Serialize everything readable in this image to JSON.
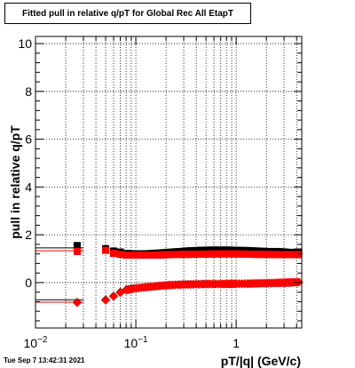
{
  "chart_data": {
    "type": "scatter",
    "title": "Fitted pull in relative q/pT for Global Rec All EtapT",
    "xlabel": "pT/|q| (GeV/c)",
    "ylabel": "pull in relative q/pT",
    "xscale": "log",
    "xlim": [
      0.01,
      4.5
    ],
    "ylim": [
      -1.9,
      10.3
    ],
    "x_ticks": [
      {
        "value": 0.01,
        "base": "10",
        "exp": "−2"
      },
      {
        "value": 0.1,
        "base": "10",
        "exp": "−1"
      },
      {
        "value": 1,
        "base": "1",
        "exp": ""
      }
    ],
    "y_ticks": [
      0,
      2,
      4,
      6,
      8,
      10
    ],
    "grid": true,
    "series": [
      {
        "marker": "square",
        "color": "#000000",
        "points": [
          [
            0.026,
            1.55
          ],
          [
            0.05,
            1.42
          ],
          [
            0.06,
            1.32
          ],
          [
            0.07,
            1.28
          ],
          [
            0.08,
            1.22
          ],
          [
            0.095,
            1.2
          ],
          [
            0.12,
            1.2
          ],
          [
            0.15,
            1.22
          ],
          [
            0.18,
            1.24
          ],
          [
            0.22,
            1.27
          ],
          [
            0.28,
            1.3
          ],
          [
            0.35,
            1.33
          ],
          [
            0.45,
            1.35
          ],
          [
            0.55,
            1.36
          ],
          [
            0.7,
            1.36
          ],
          [
            0.85,
            1.36
          ],
          [
            1.0,
            1.35
          ],
          [
            1.3,
            1.34
          ],
          [
            1.6,
            1.32
          ],
          [
            2.0,
            1.3
          ],
          [
            2.5,
            1.3
          ],
          [
            3.0,
            1.28
          ],
          [
            3.5,
            1.25
          ],
          [
            4.2,
            1.28
          ]
        ],
        "fit_line": 1.45,
        "fit_xmax": 0.03
      },
      {
        "marker": "square",
        "color": "#ff0000",
        "points": [
          [
            0.026,
            1.3
          ],
          [
            0.05,
            1.35
          ],
          [
            0.06,
            1.22
          ],
          [
            0.07,
            1.18
          ],
          [
            0.08,
            1.15
          ],
          [
            0.095,
            1.15
          ],
          [
            0.12,
            1.15
          ],
          [
            0.15,
            1.15
          ],
          [
            0.18,
            1.16
          ],
          [
            0.22,
            1.17
          ],
          [
            0.28,
            1.18
          ],
          [
            0.35,
            1.18
          ],
          [
            0.45,
            1.19
          ],
          [
            0.55,
            1.19
          ],
          [
            0.7,
            1.2
          ],
          [
            0.85,
            1.2
          ],
          [
            1.0,
            1.2
          ],
          [
            1.3,
            1.19
          ],
          [
            1.6,
            1.18
          ],
          [
            2.0,
            1.18
          ],
          [
            2.5,
            1.17
          ],
          [
            3.0,
            1.17
          ],
          [
            3.5,
            1.17
          ],
          [
            4.2,
            1.17
          ]
        ],
        "fit_line": 1.33,
        "fit_xmax": 0.03
      },
      {
        "marker": "diamond",
        "color": "#000000",
        "points": [
          [
            0.026,
            -0.82
          ],
          [
            0.05,
            -0.72
          ],
          [
            0.06,
            -0.56
          ],
          [
            0.07,
            -0.4
          ],
          [
            0.08,
            -0.3
          ],
          [
            0.095,
            -0.24
          ],
          [
            0.12,
            -0.2
          ],
          [
            0.15,
            -0.16
          ],
          [
            0.18,
            -0.13
          ],
          [
            0.22,
            -0.1
          ],
          [
            0.28,
            -0.08
          ],
          [
            0.35,
            -0.07
          ],
          [
            0.45,
            -0.06
          ],
          [
            0.55,
            -0.06
          ],
          [
            0.7,
            -0.06
          ],
          [
            0.85,
            -0.06
          ],
          [
            1.0,
            -0.05
          ],
          [
            1.3,
            -0.05
          ],
          [
            1.6,
            -0.04
          ],
          [
            2.0,
            -0.03
          ],
          [
            2.5,
            -0.02
          ],
          [
            3.0,
            -0.01
          ],
          [
            3.5,
            0.0
          ],
          [
            4.2,
            0.02
          ]
        ],
        "fit_line": -0.72,
        "fit_xmax": 0.03
      },
      {
        "marker": "diamond",
        "color": "#ff0000",
        "points": [
          [
            0.026,
            -0.84
          ],
          [
            0.05,
            -0.74
          ],
          [
            0.06,
            -0.58
          ],
          [
            0.07,
            -0.42
          ],
          [
            0.08,
            -0.32
          ],
          [
            0.095,
            -0.25
          ],
          [
            0.12,
            -0.2
          ],
          [
            0.15,
            -0.16
          ],
          [
            0.18,
            -0.13
          ],
          [
            0.22,
            -0.11
          ],
          [
            0.28,
            -0.09
          ],
          [
            0.35,
            -0.08
          ],
          [
            0.45,
            -0.07
          ],
          [
            0.55,
            -0.06
          ],
          [
            0.7,
            -0.06
          ],
          [
            0.85,
            -0.05
          ],
          [
            1.0,
            -0.05
          ],
          [
            1.3,
            -0.04
          ],
          [
            1.6,
            -0.03
          ],
          [
            2.0,
            -0.02
          ],
          [
            2.5,
            -0.01
          ],
          [
            3.0,
            0.0
          ],
          [
            3.5,
            0.01
          ],
          [
            4.2,
            0.02
          ]
        ],
        "fit_line": -0.82,
        "fit_xmax": 0.03
      }
    ]
  },
  "timestamp": "Tue Sep  7 13:42:31 2021"
}
